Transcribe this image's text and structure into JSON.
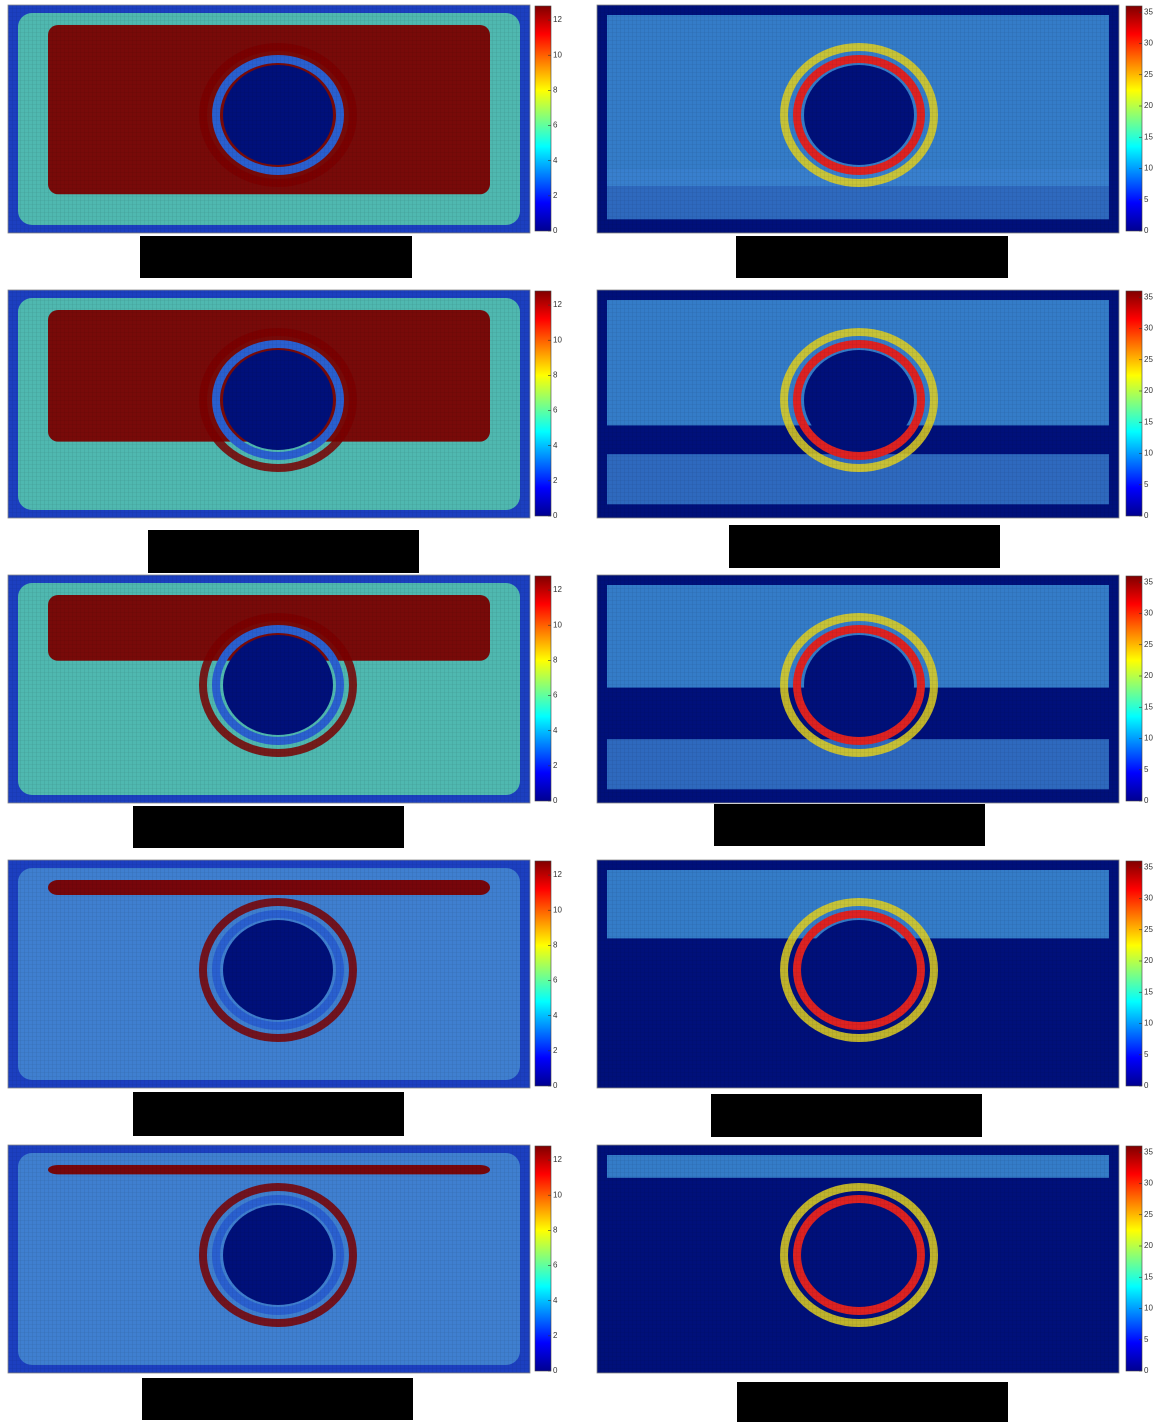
{
  "chart_data": [
    {
      "type": "heatmap",
      "clim": [
        0,
        12.8
      ],
      "cticks": [
        0,
        2,
        4,
        6,
        8,
        10,
        12
      ]
    },
    {
      "type": "heatmap",
      "clim": [
        0,
        36
      ],
      "cticks": [
        0,
        5,
        10,
        15,
        20,
        25,
        30,
        35
      ]
    },
    {
      "type": "heatmap",
      "clim": [
        0,
        12.8
      ],
      "cticks": [
        0,
        2,
        4,
        6,
        8,
        10,
        12
      ]
    },
    {
      "type": "heatmap",
      "clim": [
        0,
        36
      ],
      "cticks": [
        0,
        5,
        10,
        15,
        20,
        25,
        30,
        35
      ]
    },
    {
      "type": "heatmap",
      "clim": [
        0,
        12.8
      ],
      "cticks": [
        0,
        2,
        4,
        6,
        8,
        10,
        12
      ]
    },
    {
      "type": "heatmap",
      "clim": [
        0,
        36
      ],
      "cticks": [
        0,
        5,
        10,
        15,
        20,
        25,
        30,
        35
      ]
    },
    {
      "type": "heatmap",
      "clim": [
        0,
        12.8
      ],
      "cticks": [
        0,
        2,
        4,
        6,
        8,
        10,
        12
      ]
    },
    {
      "type": "heatmap",
      "clim": [
        0,
        36
      ],
      "cticks": [
        0,
        5,
        10,
        15,
        20,
        25,
        30,
        35
      ]
    },
    {
      "type": "heatmap",
      "clim": [
        0,
        12.8
      ],
      "cticks": [
        0,
        2,
        4,
        6,
        8,
        10,
        12
      ]
    },
    {
      "type": "heatmap",
      "clim": [
        0,
        36
      ],
      "cticks": [
        0,
        5,
        10,
        15,
        20,
        25,
        30,
        35
      ]
    }
  ]
}
